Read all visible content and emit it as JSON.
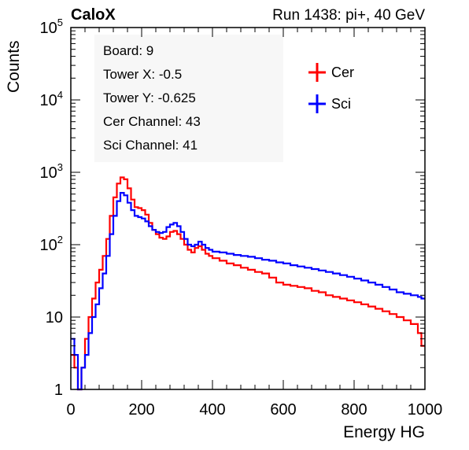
{
  "header": {
    "experiment": "CaloX",
    "run_info": "Run 1438: pi+, 40 GeV"
  },
  "info_box": {
    "lines": [
      "Board: 9",
      "Tower X: -0.5",
      "Tower Y: -0.625",
      "Cer Channel: 43",
      "Sci Channel: 41"
    ]
  },
  "colors": {
    "cer": "#ff0000",
    "sci": "#0000ff",
    "info_box_bg": "#f7f7f7"
  },
  "chart_data": {
    "type": "line",
    "style": "step-histogram",
    "xlabel": "Energy HG",
    "ylabel": "Counts",
    "xlim": [
      0,
      1000
    ],
    "ylim": [
      1,
      100000
    ],
    "yscale": "log",
    "x_ticks": [
      "0",
      "200",
      "400",
      "600",
      "800",
      "1000"
    ],
    "y_ticks": [
      {
        "value": 1,
        "base": "1",
        "exp": ""
      },
      {
        "value": 10,
        "base": "10",
        "exp": ""
      },
      {
        "value": 100,
        "base": "10",
        "exp": "2"
      },
      {
        "value": 1000,
        "base": "10",
        "exp": "3"
      },
      {
        "value": 10000,
        "base": "10",
        "exp": "4"
      },
      {
        "value": 100000,
        "base": "10",
        "exp": "5"
      }
    ],
    "legend_position": "top-right",
    "series": [
      {
        "name": "Cer",
        "color": "#ff0000",
        "points": [
          [
            0,
            3
          ],
          [
            10,
            2
          ],
          [
            20,
            1
          ],
          [
            30,
            2
          ],
          [
            40,
            5
          ],
          [
            50,
            10
          ],
          [
            60,
            18
          ],
          [
            70,
            30
          ],
          [
            80,
            45
          ],
          [
            90,
            70
          ],
          [
            100,
            120
          ],
          [
            110,
            250
          ],
          [
            120,
            450
          ],
          [
            130,
            700
          ],
          [
            140,
            850
          ],
          [
            150,
            800
          ],
          [
            160,
            600
          ],
          [
            170,
            420
          ],
          [
            180,
            330
          ],
          [
            190,
            320
          ],
          [
            200,
            300
          ],
          [
            210,
            260
          ],
          [
            220,
            200
          ],
          [
            230,
            160
          ],
          [
            240,
            140
          ],
          [
            250,
            125
          ],
          [
            260,
            120
          ],
          [
            270,
            130
          ],
          [
            280,
            150
          ],
          [
            290,
            155
          ],
          [
            300,
            140
          ],
          [
            310,
            120
          ],
          [
            320,
            100
          ],
          [
            330,
            85
          ],
          [
            340,
            78
          ],
          [
            350,
            90
          ],
          [
            360,
            95
          ],
          [
            370,
            85
          ],
          [
            380,
            75
          ],
          [
            390,
            70
          ],
          [
            400,
            65
          ],
          [
            420,
            60
          ],
          [
            440,
            55
          ],
          [
            460,
            52
          ],
          [
            480,
            48
          ],
          [
            500,
            45
          ],
          [
            520,
            42
          ],
          [
            540,
            40
          ],
          [
            560,
            35
          ],
          [
            580,
            30
          ],
          [
            600,
            28
          ],
          [
            620,
            27
          ],
          [
            640,
            26
          ],
          [
            660,
            25
          ],
          [
            680,
            23
          ],
          [
            700,
            22
          ],
          [
            720,
            20
          ],
          [
            740,
            19
          ],
          [
            760,
            18
          ],
          [
            780,
            17
          ],
          [
            800,
            16
          ],
          [
            820,
            15
          ],
          [
            840,
            14
          ],
          [
            860,
            13
          ],
          [
            880,
            12
          ],
          [
            900,
            11
          ],
          [
            920,
            10
          ],
          [
            940,
            9
          ],
          [
            960,
            8
          ],
          [
            980,
            6
          ],
          [
            990,
            4
          ]
        ]
      },
      {
        "name": "Sci",
        "color": "#0000ff",
        "points": [
          [
            0,
            5
          ],
          [
            10,
            3
          ],
          [
            20,
            1
          ],
          [
            30,
            2
          ],
          [
            40,
            3
          ],
          [
            50,
            6
          ],
          [
            60,
            10
          ],
          [
            70,
            15
          ],
          [
            80,
            25
          ],
          [
            90,
            40
          ],
          [
            100,
            70
          ],
          [
            110,
            140
          ],
          [
            120,
            250
          ],
          [
            130,
            400
          ],
          [
            140,
            520
          ],
          [
            150,
            480
          ],
          [
            160,
            380
          ],
          [
            170,
            300
          ],
          [
            180,
            250
          ],
          [
            190,
            240
          ],
          [
            200,
            230
          ],
          [
            210,
            210
          ],
          [
            220,
            180
          ],
          [
            230,
            160
          ],
          [
            240,
            150
          ],
          [
            250,
            145
          ],
          [
            260,
            150
          ],
          [
            270,
            175
          ],
          [
            280,
            190
          ],
          [
            290,
            200
          ],
          [
            300,
            180
          ],
          [
            310,
            150
          ],
          [
            320,
            120
          ],
          [
            330,
            100
          ],
          [
            340,
            95
          ],
          [
            350,
            100
          ],
          [
            360,
            110
          ],
          [
            370,
            100
          ],
          [
            380,
            90
          ],
          [
            390,
            85
          ],
          [
            400,
            80
          ],
          [
            420,
            78
          ],
          [
            440,
            75
          ],
          [
            460,
            72
          ],
          [
            480,
            70
          ],
          [
            500,
            68
          ],
          [
            520,
            65
          ],
          [
            540,
            62
          ],
          [
            560,
            60
          ],
          [
            580,
            57
          ],
          [
            600,
            55
          ],
          [
            620,
            52
          ],
          [
            640,
            50
          ],
          [
            660,
            48
          ],
          [
            680,
            46
          ],
          [
            700,
            44
          ],
          [
            720,
            42
          ],
          [
            740,
            40
          ],
          [
            760,
            38
          ],
          [
            780,
            36
          ],
          [
            800,
            34
          ],
          [
            820,
            32
          ],
          [
            840,
            30
          ],
          [
            860,
            28
          ],
          [
            880,
            26
          ],
          [
            900,
            24
          ],
          [
            920,
            22
          ],
          [
            940,
            21
          ],
          [
            960,
            20
          ],
          [
            980,
            19
          ],
          [
            990,
            18
          ]
        ]
      }
    ]
  }
}
